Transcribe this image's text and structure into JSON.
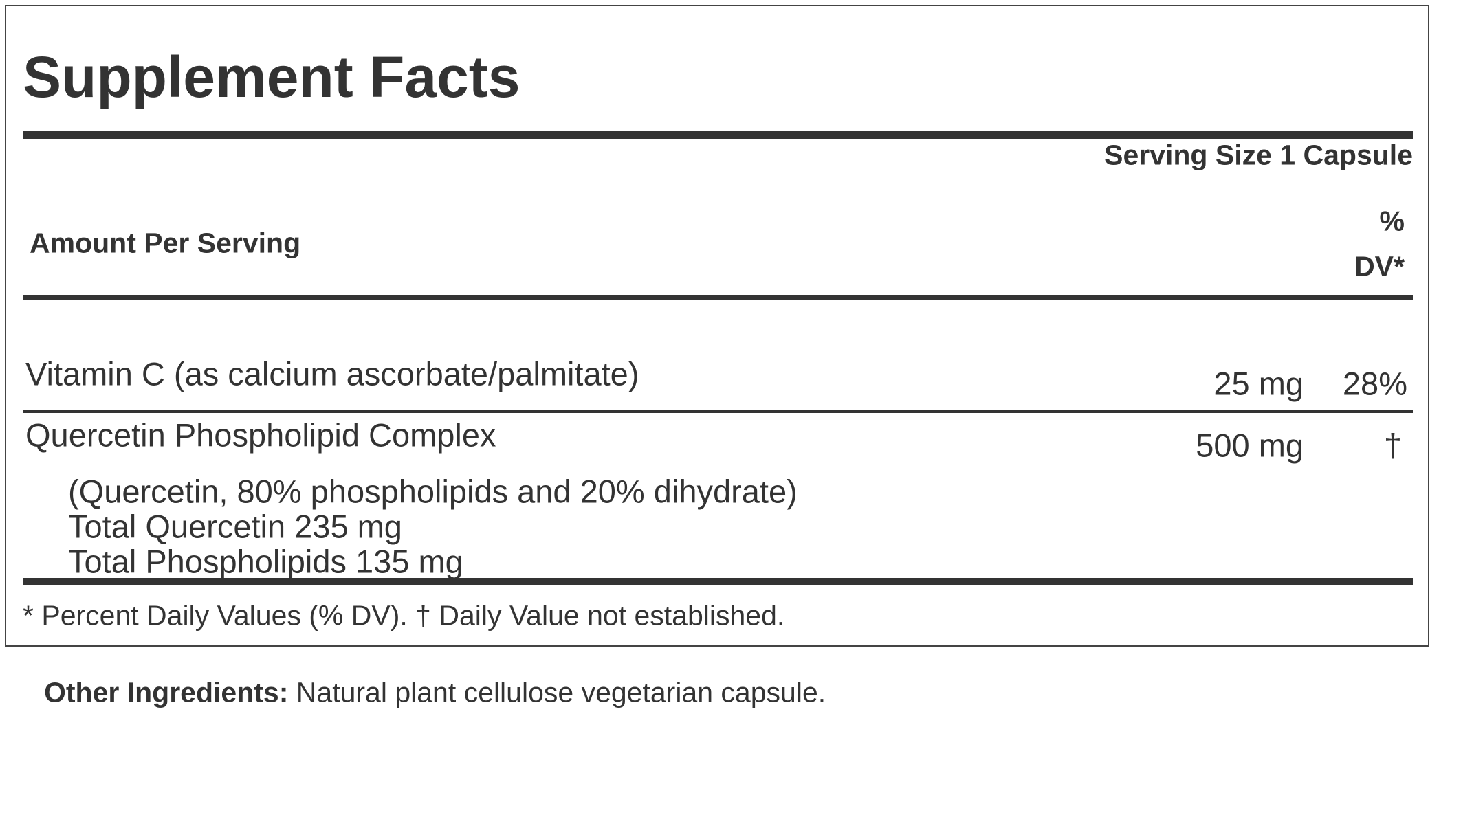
{
  "title": "Supplement Facts",
  "serving_size": "Serving Size 1 Capsule",
  "header": {
    "amount_per_serving": "Amount Per Serving",
    "dv_line1": "%",
    "dv_line2": "DV*"
  },
  "ingredients": [
    {
      "name": "Vitamin C (as calcium ascorbate/palmitate)",
      "amount": "25 mg",
      "dv": "28%"
    },
    {
      "name": "Quercetin Phospholipid Complex",
      "amount": "500 mg",
      "dv": "†",
      "details": [
        "(Quercetin, 80% phospholipids and 20% dihydrate)",
        "Total Quercetin 235 mg",
        "Total Phospholipids 135 mg"
      ]
    }
  ],
  "footnote": "* Percent Daily Values (% DV). † Daily Value not established.",
  "other_ingredients": {
    "label": "Other Ingredients:",
    "text": "Natural plant cellulose vegetarian capsule."
  }
}
